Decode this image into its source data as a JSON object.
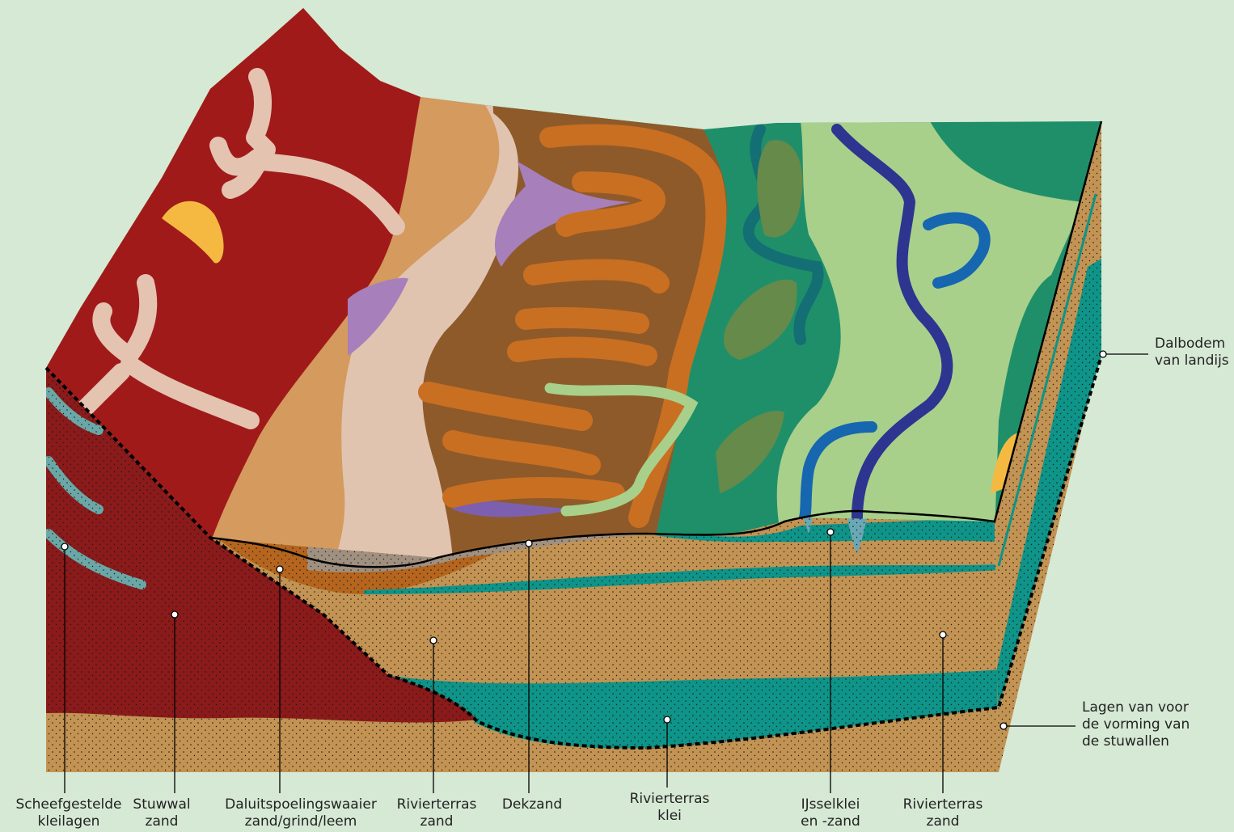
{
  "labels": [
    {
      "lines": [
        "Scheefgestelde",
        "kleilagen"
      ]
    },
    {
      "lines": [
        "Stuwwal",
        "zand"
      ]
    },
    {
      "lines": [
        "Daluitspoelingswaaier",
        "zand/grind/leem"
      ]
    },
    {
      "lines": [
        "Rivierterras",
        "zand"
      ]
    },
    {
      "lines": [
        "Dekzand"
      ]
    },
    {
      "lines": [
        "Rivierterras",
        "klei"
      ]
    },
    {
      "lines": [
        "IJsselklei",
        "en -zand"
      ]
    },
    {
      "lines": [
        "Rivierterras",
        "zand"
      ]
    },
    {
      "lines": [
        "Dalbodem",
        "van landijs"
      ]
    },
    {
      "lines": [
        "Lagen van voor",
        "de vorming van",
        "de stuwallen"
      ]
    }
  ]
}
